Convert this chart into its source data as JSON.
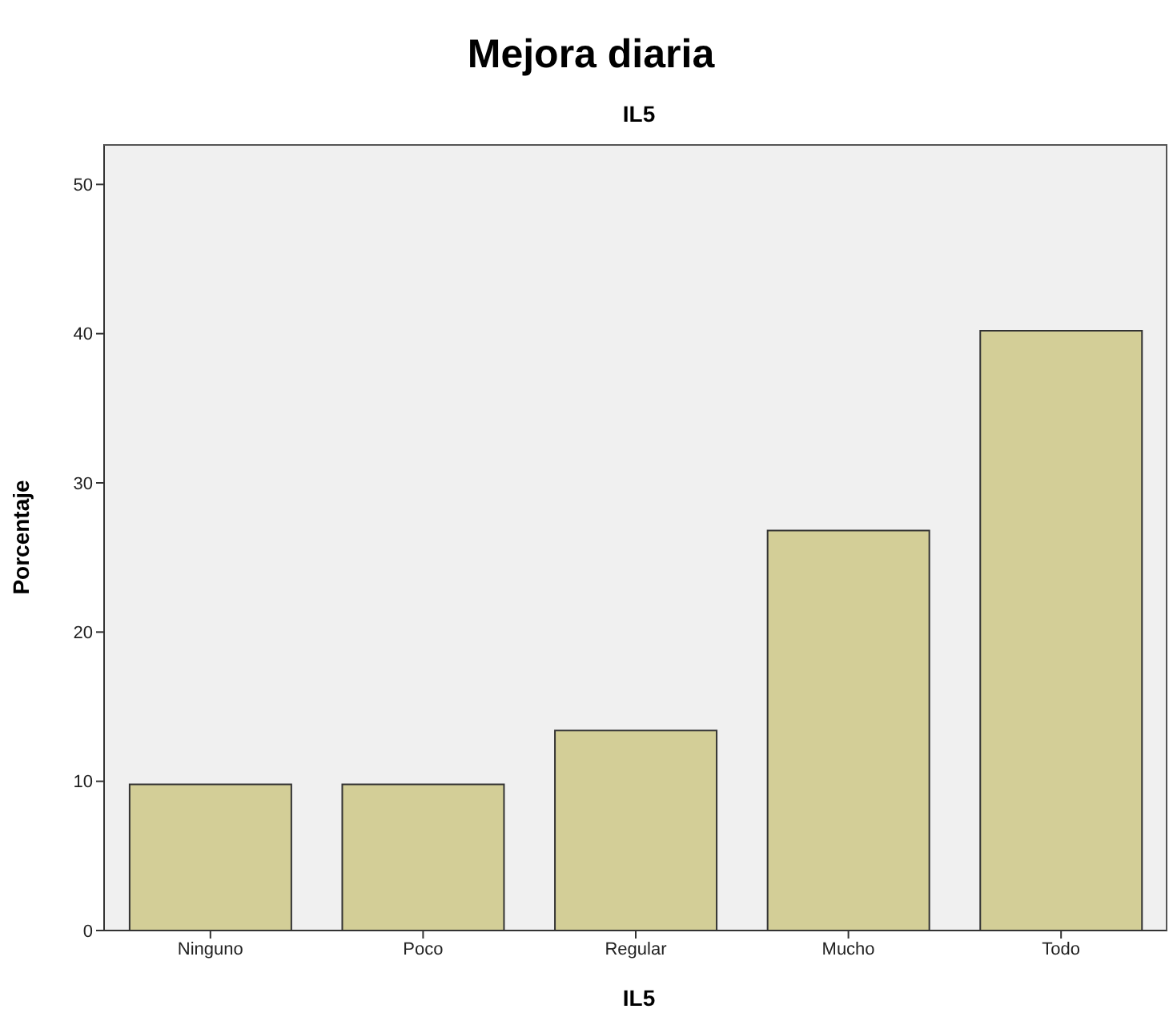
{
  "chart_data": {
    "type": "bar",
    "title": "Mejora diaria",
    "subtitle": "IL5",
    "xlabel": "IL5",
    "ylabel": "Porcentaje",
    "categories": [
      "Ninguno",
      "Poco",
      "Regular",
      "Mucho",
      "Todo"
    ],
    "values": [
      9.8,
      9.8,
      13.4,
      26.8,
      40.2
    ],
    "color": "#d3ce97",
    "ylim": [
      0,
      52.7
    ],
    "yticks": [
      0,
      10,
      20,
      30,
      40,
      50
    ],
    "grid": false
  }
}
